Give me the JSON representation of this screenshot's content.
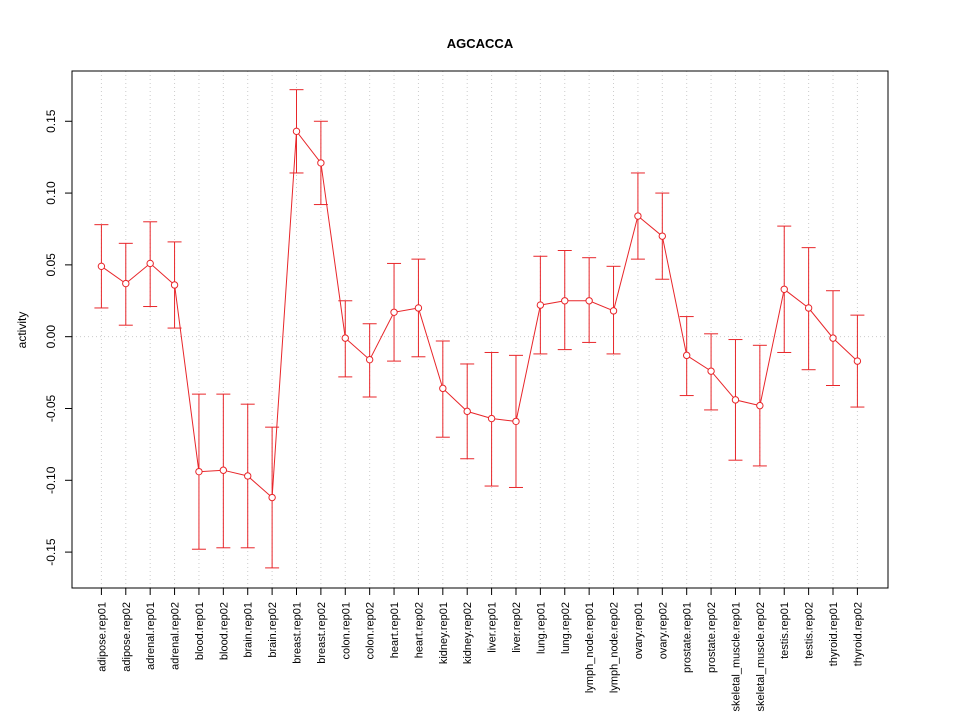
{
  "chart_data": {
    "type": "line",
    "title": "AGCACCA",
    "xlabel": "",
    "ylabel": "activity",
    "ylim": [
      -0.175,
      0.185
    ],
    "yticks": [
      -0.15,
      -0.1,
      -0.05,
      0.0,
      0.05,
      0.1,
      0.15
    ],
    "ytick_labels": [
      "-0.15",
      "-0.10",
      "-0.05",
      "0.00",
      "0.05",
      "0.10",
      "0.15"
    ],
    "grid": true,
    "color": "#e8262a",
    "categories": [
      "adipose.rep01",
      "adipose.rep02",
      "adrenal.rep01",
      "adrenal.rep02",
      "blood.rep01",
      "blood.rep02",
      "brain.rep01",
      "brain.rep02",
      "breast.rep01",
      "breast.rep02",
      "colon.rep01",
      "colon.rep02",
      "heart.rep01",
      "heart.rep02",
      "kidney.rep01",
      "kidney.rep02",
      "liver.rep01",
      "liver.rep02",
      "lung.rep01",
      "lung.rep02",
      "lymph_node.rep01",
      "lymph_node.rep02",
      "ovary.rep01",
      "ovary.rep02",
      "prostate.rep01",
      "prostate.rep02",
      "skeletal_muscle.rep01",
      "skeletal_muscle.rep02",
      "testis.rep01",
      "testis.rep02",
      "thyroid.rep01",
      "thyroid.rep02"
    ],
    "values": [
      0.049,
      0.037,
      0.051,
      0.036,
      -0.094,
      -0.093,
      -0.097,
      -0.112,
      0.143,
      0.121,
      -0.001,
      -0.016,
      0.017,
      0.02,
      -0.036,
      -0.052,
      -0.057,
      -0.059,
      0.022,
      0.025,
      0.025,
      0.018,
      0.084,
      0.07,
      -0.013,
      -0.024,
      -0.044,
      -0.048,
      0.033,
      0.02,
      -0.001,
      -0.017
    ],
    "upper": [
      0.078,
      0.065,
      0.08,
      0.066,
      -0.04,
      -0.04,
      -0.047,
      -0.063,
      0.172,
      0.15,
      0.025,
      0.009,
      0.051,
      0.054,
      -0.003,
      -0.019,
      -0.011,
      -0.013,
      0.056,
      0.06,
      0.055,
      0.049,
      0.114,
      0.1,
      0.014,
      0.002,
      -0.002,
      -0.006,
      0.077,
      0.062,
      0.032,
      0.015
    ],
    "lower": [
      0.02,
      0.008,
      0.021,
      0.006,
      -0.148,
      -0.147,
      -0.147,
      -0.161,
      0.114,
      0.092,
      -0.028,
      -0.042,
      -0.017,
      -0.014,
      -0.07,
      -0.085,
      -0.104,
      -0.105,
      -0.012,
      -0.009,
      -0.004,
      -0.012,
      0.054,
      0.04,
      -0.041,
      -0.051,
      -0.086,
      -0.09,
      -0.011,
      -0.023,
      -0.034,
      -0.049
    ]
  }
}
